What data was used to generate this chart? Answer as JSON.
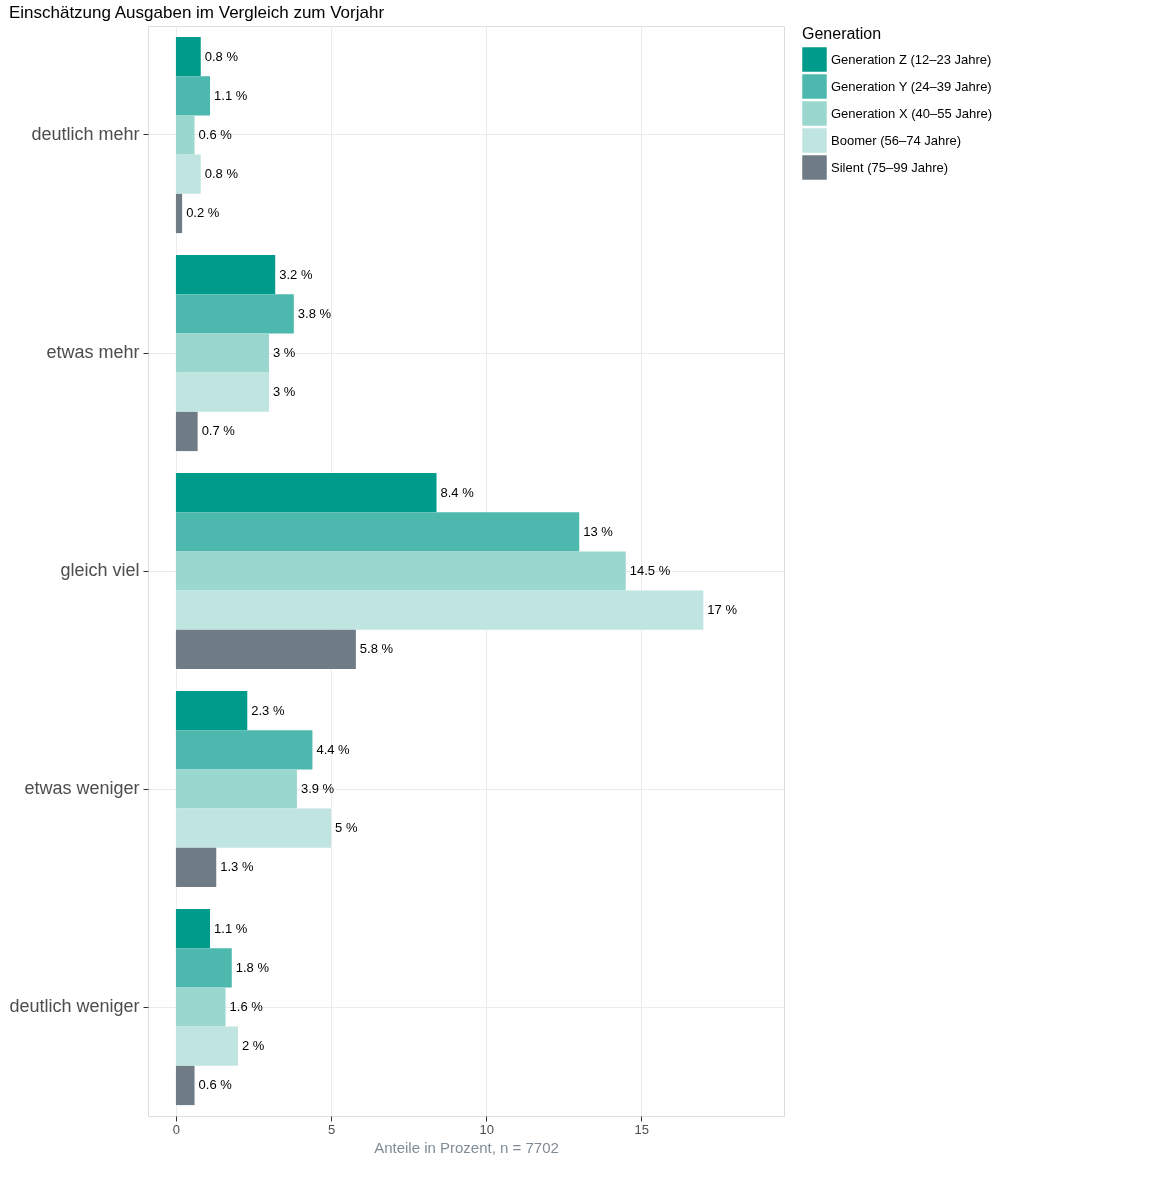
{
  "chart_data": {
    "type": "bar",
    "orientation": "horizontal",
    "title": "Einschätzung Ausgaben im Vergleich zum Vorjahr",
    "xlabel": "Anteile in Prozent, n = 7702",
    "legend_title": "Generation",
    "legend": "right",
    "grid": true,
    "categories": [
      "deutlich mehr",
      "etwas mehr",
      "gleich viel",
      "etwas weniger",
      "deutlich weniger"
    ],
    "xlim": [
      -0.9,
      19.6
    ],
    "xticks": [
      0,
      5,
      10,
      15
    ],
    "series": [
      {
        "name": "Generation Z (12–23 Jahre)",
        "color": "#009b8a",
        "values": [
          0.8,
          3.2,
          8.4,
          2.3,
          1.1
        ],
        "value_labels": [
          "0.8 %",
          "3.2 %",
          "8.4 %",
          "2.3 %",
          "1.1 %"
        ]
      },
      {
        "name": "Generation Y (24–39 Jahre)",
        "color": "#4db8ad",
        "values": [
          1.1,
          3.8,
          13,
          4.4,
          1.8
        ],
        "value_labels": [
          "1.1 %",
          "3.8 %",
          "13 %",
          "4.4 %",
          "1.8 %"
        ]
      },
      {
        "name": "Generation X (40–55 Jahre)",
        "color": "#9ad7cf",
        "values": [
          0.6,
          3,
          14.5,
          3.9,
          1.6
        ],
        "value_labels": [
          "0.6 %",
          "3 %",
          "14.5 %",
          "3.9 %",
          "1.6 %"
        ]
      },
      {
        "name": "Boomer (56–74 Jahre)",
        "color": "#c0e5e1",
        "values": [
          0.8,
          3,
          17,
          5,
          2
        ],
        "value_labels": [
          "0.8 %",
          "3 %",
          "17 %",
          "5 %",
          "2 %"
        ]
      },
      {
        "name": "Silent (75–99 Jahre)",
        "color": "#6f7c85",
        "values": [
          0.2,
          0.7,
          5.8,
          1.3,
          0.6
        ],
        "value_labels": [
          "0.2 %",
          "0.7 %",
          "5.8 %",
          "1.3 %",
          "0.6 %"
        ]
      }
    ]
  }
}
